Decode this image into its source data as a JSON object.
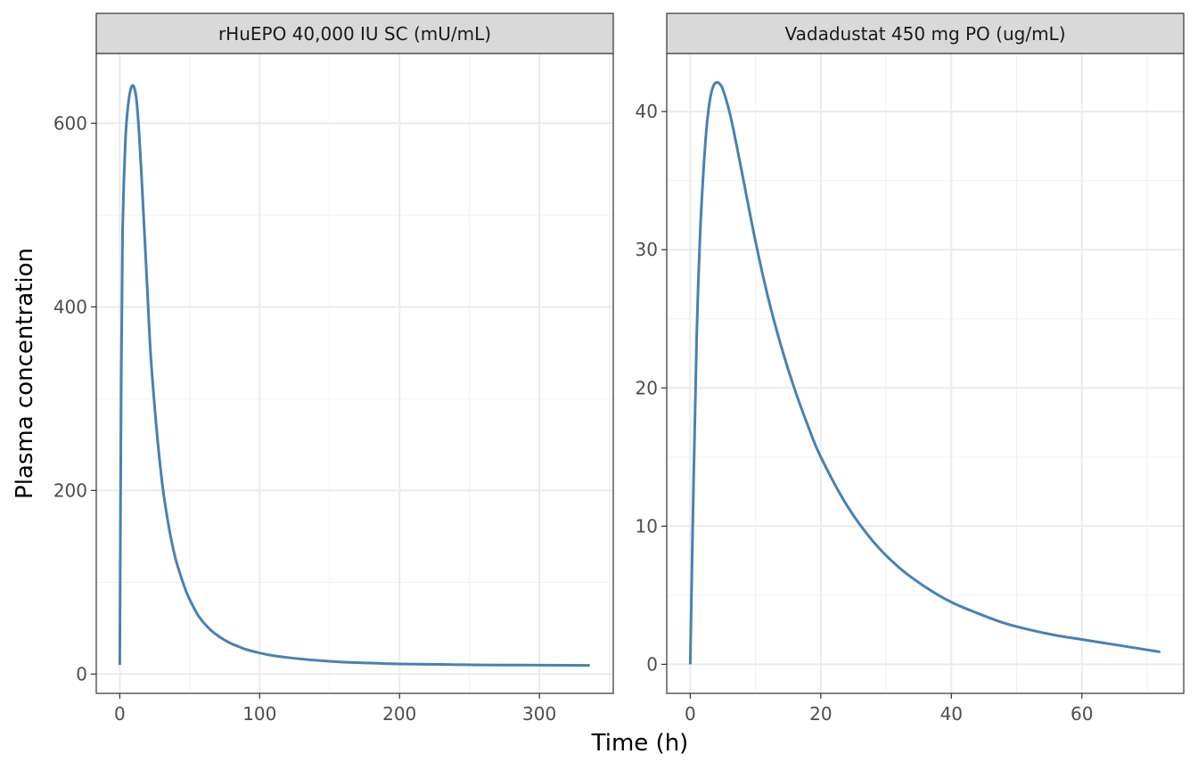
{
  "chart_data": {
    "type": "line",
    "xlabel": "Time (h)",
    "ylabel": "Plasma concentration",
    "grid": true,
    "line_color": "#4682B4",
    "panels": [
      {
        "title": "rHuEPO 40,000 IU SC (mU/mL)",
        "xlim": [
          -16.8,
          352.8
        ],
        "ylim": [
          -21,
          676
        ],
        "xticks": [
          0,
          100,
          200,
          300
        ],
        "yticks": [
          0,
          200,
          400,
          600
        ],
        "x": [
          0,
          1,
          2,
          4,
          6,
          8,
          10,
          12,
          14,
          16,
          18,
          20,
          22,
          25,
          28,
          31,
          34,
          37,
          40,
          44,
          48,
          52,
          56,
          60,
          65,
          70,
          75,
          80,
          85,
          90,
          100,
          110,
          120,
          140,
          160,
          180,
          200,
          230,
          260,
          290,
          320,
          336
        ],
        "y": [
          10,
          310,
          480,
          580,
          620,
          638,
          640,
          625,
          585,
          530,
          470,
          410,
          350,
          290,
          240,
          200,
          170,
          145,
          125,
          105,
          88,
          75,
          64,
          56,
          48,
          42,
          37,
          33,
          30,
          27,
          23,
          20,
          18,
          15,
          13,
          12,
          11,
          10.5,
          10,
          9.8,
          9.6,
          9.5
        ]
      },
      {
        "title": "Vadadustat 450 mg PO (ug/mL)",
        "xlim": [
          -3.6,
          75.6
        ],
        "ylim": [
          -2.1,
          44.2
        ],
        "xticks": [
          0,
          20,
          40,
          60
        ],
        "yticks": [
          0,
          10,
          20,
          30,
          40
        ],
        "x": [
          0,
          0.5,
          1,
          1.5,
          2,
          2.5,
          3,
          3.5,
          4,
          4.5,
          5,
          6,
          7,
          8,
          10,
          12,
          14,
          16,
          18,
          20,
          24,
          28,
          32,
          36,
          40,
          44,
          48,
          52,
          56,
          60,
          64,
          68,
          72
        ],
        "y": [
          0,
          13,
          24,
          31,
          35.5,
          38.8,
          40.8,
          41.8,
          42.1,
          42.0,
          41.6,
          40.0,
          37.8,
          35.4,
          30.6,
          26.4,
          22.9,
          19.9,
          17.3,
          15.0,
          11.5,
          8.9,
          7.0,
          5.6,
          4.5,
          3.7,
          3.0,
          2.5,
          2.1,
          1.8,
          1.5,
          1.2,
          0.9
        ]
      }
    ]
  }
}
